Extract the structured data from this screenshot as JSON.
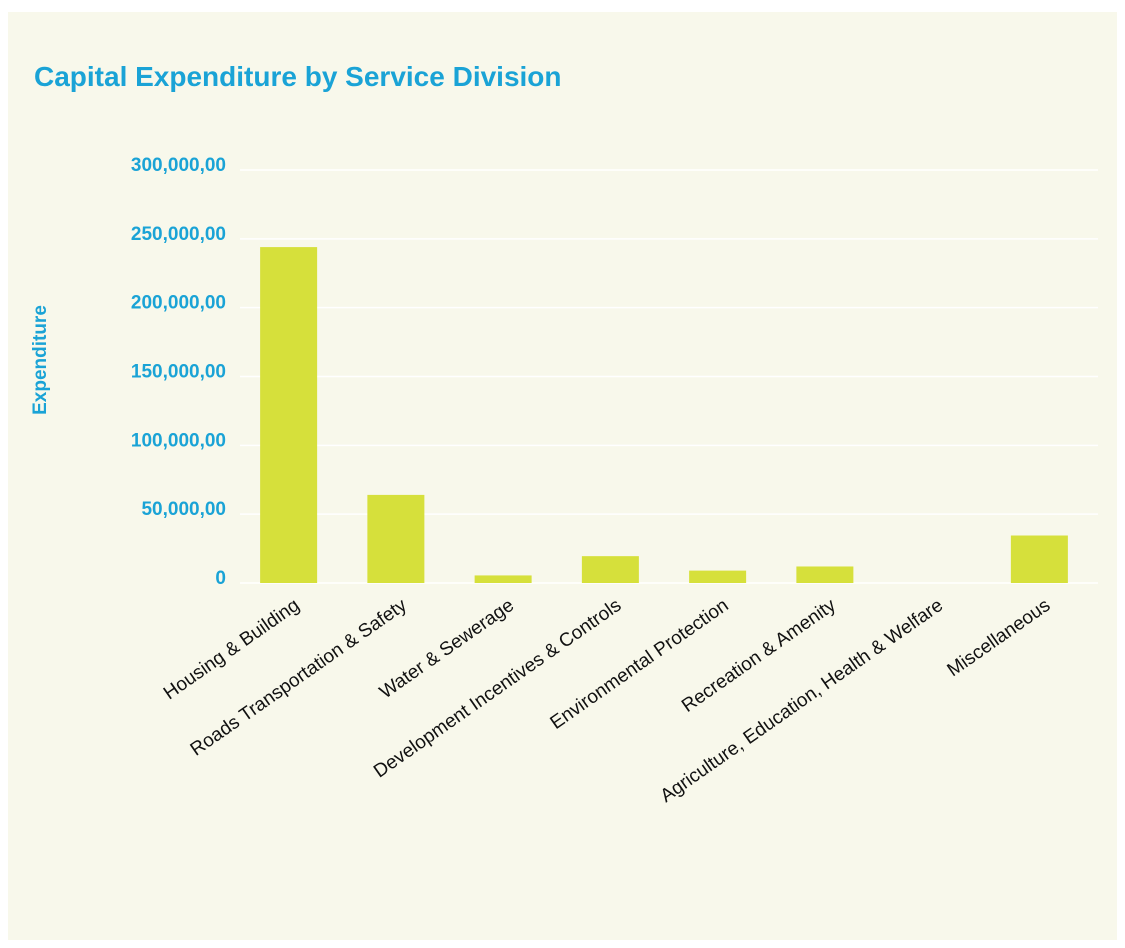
{
  "colors": {
    "background": "#f8f8eb",
    "title": "#1aa3d6",
    "bar": "#d6e03b",
    "axis_text": "#1aa3d6",
    "category_text": "#111111"
  },
  "chart_data": {
    "type": "bar",
    "title": "Capital Expenditure by Service Division",
    "xlabel": "",
    "ylabel": "Expenditure",
    "ylim": [
      0,
      300000
    ],
    "yticks": [
      0,
      50000,
      100000,
      150000,
      200000,
      250000,
      300000
    ],
    "ytick_labels": [
      "0",
      "50,000,00",
      "100,000,00",
      "150,000,00",
      "200,000,00",
      "250,000,00",
      "300,000,00"
    ],
    "categories": [
      "Housing & Building",
      "Roads Transportation & Safety",
      "Water & Sewerage",
      "Development Incentives & Controls",
      "Environmental Protection",
      "Recreation & Amenity",
      "Agriculture, Education, Health & Welfare",
      "Miscellaneous"
    ],
    "values": [
      244000,
      64000,
      5500,
      19500,
      9000,
      12000,
      0,
      34500
    ],
    "grid": true,
    "legend": "none"
  }
}
